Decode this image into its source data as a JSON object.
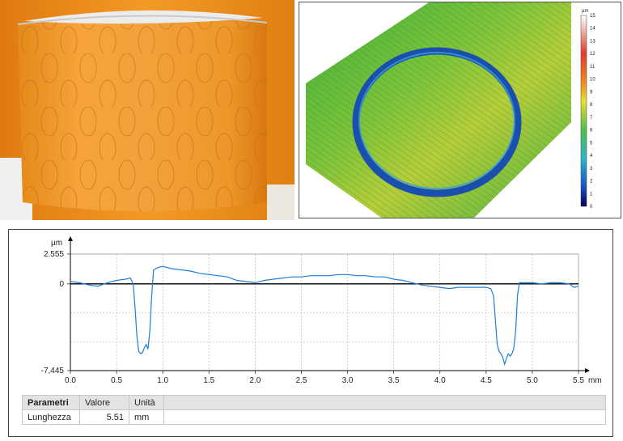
{
  "photo": {
    "subject": "orange cylindrical part with textured oval pattern"
  },
  "surface_map": {
    "colorbar": {
      "unit": "µm",
      "ticks": [
        "15",
        "14",
        "13",
        "12",
        "11",
        "10",
        "9",
        "8",
        "7",
        "6",
        "5",
        "4",
        "3",
        "2",
        "1",
        "0"
      ]
    }
  },
  "chart_data": {
    "type": "line",
    "title": "",
    "xlabel": "mm",
    "ylabel": "µm",
    "xlim": [
      0,
      5.5
    ],
    "ylim": [
      -7.445,
      2.555
    ],
    "x_ticks": [
      "0.0",
      "0.5",
      "1.0",
      "1.5",
      "2.0",
      "2.5",
      "3.0",
      "3.5",
      "4.0",
      "4.5",
      "5.0",
      "5.5"
    ],
    "y_ticks": [
      "2.555",
      "0",
      "-7,445"
    ],
    "grid": true,
    "series": [
      {
        "name": "",
        "color": "#1f7fd8",
        "x": [
          0.0,
          0.1,
          0.2,
          0.3,
          0.4,
          0.5,
          0.6,
          0.65,
          0.68,
          0.7,
          0.72,
          0.74,
          0.76,
          0.78,
          0.8,
          0.82,
          0.84,
          0.86,
          0.88,
          0.9,
          0.95,
          1.0,
          1.1,
          1.2,
          1.3,
          1.4,
          1.5,
          1.6,
          1.7,
          1.8,
          1.9,
          2.0,
          2.1,
          2.2,
          2.3,
          2.4,
          2.5,
          2.6,
          2.7,
          2.8,
          2.9,
          3.0,
          3.1,
          3.2,
          3.3,
          3.4,
          3.5,
          3.6,
          3.7,
          3.8,
          3.9,
          4.0,
          4.1,
          4.2,
          4.3,
          4.4,
          4.5,
          4.55,
          4.58,
          4.6,
          4.62,
          4.64,
          4.66,
          4.68,
          4.7,
          4.72,
          4.74,
          4.76,
          4.78,
          4.8,
          4.82,
          4.84,
          4.86,
          4.9,
          5.0,
          5.1,
          5.2,
          5.3,
          5.4,
          5.45,
          5.5
        ],
        "y": [
          0.2,
          0.1,
          -0.1,
          -0.2,
          0.1,
          0.3,
          0.4,
          0.5,
          0.0,
          -2.0,
          -4.5,
          -5.8,
          -6.0,
          -5.9,
          -5.5,
          -5.2,
          -5.6,
          -4.0,
          -1.0,
          1.2,
          1.4,
          1.5,
          1.3,
          1.2,
          1.1,
          0.9,
          0.8,
          0.7,
          0.6,
          0.3,
          0.2,
          0.1,
          0.3,
          0.4,
          0.5,
          0.6,
          0.6,
          0.7,
          0.7,
          0.7,
          0.8,
          0.8,
          0.7,
          0.7,
          0.6,
          0.6,
          0.4,
          0.3,
          0.1,
          -0.1,
          -0.2,
          -0.3,
          -0.4,
          -0.3,
          -0.3,
          -0.3,
          -0.3,
          -0.4,
          -1.0,
          -3.0,
          -5.2,
          -5.8,
          -6.0,
          -6.3,
          -6.9,
          -6.4,
          -6.0,
          -6.2,
          -6.0,
          -5.5,
          -4.0,
          -1.0,
          0.1,
          0.1,
          0.1,
          0.0,
          0.1,
          0.1,
          0.0,
          -0.3,
          -0.2
        ]
      }
    ]
  },
  "params_table": {
    "headers": {
      "param": "Parametri",
      "value": "Valore",
      "unit": "Unità"
    },
    "row": {
      "param": "Lunghezza",
      "value": "5.51",
      "unit": "mm"
    }
  }
}
